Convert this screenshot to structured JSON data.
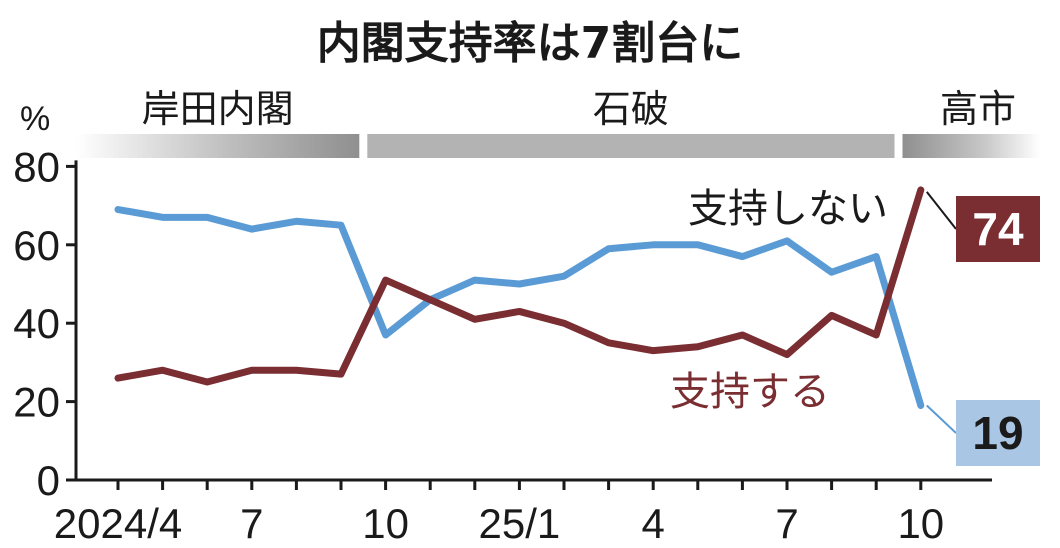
{
  "chart_data": {
    "type": "line",
    "title": "内閣支持率は7割台に",
    "y_unit": "%",
    "ylim": [
      0,
      80
    ],
    "y_ticks": [
      "0",
      "20",
      "40",
      "60",
      "80"
    ],
    "x": [
      "2024-04",
      "2024-05",
      "2024-06",
      "2024-07",
      "2024-08",
      "2024-09",
      "2024-10",
      "2024-11",
      "2024-12",
      "2025-01",
      "2025-02",
      "2025-03",
      "2025-04",
      "2025-05",
      "2025-06",
      "2025-07",
      "2025-08",
      "2025-09",
      "2025-10"
    ],
    "x_tick_labels": [
      {
        "index": 0,
        "label": "2024/4"
      },
      {
        "index": 3,
        "label": "7"
      },
      {
        "index": 6,
        "label": "10"
      },
      {
        "index": 9,
        "label": "25/1"
      },
      {
        "index": 12,
        "label": "4"
      },
      {
        "index": 15,
        "label": "7"
      },
      {
        "index": 18,
        "label": "10"
      }
    ],
    "eras": [
      {
        "name": "岸田内閣",
        "start": 0,
        "end": 5
      },
      {
        "name": "石破",
        "start": 6,
        "end": 17
      },
      {
        "name": "高市",
        "start": 18,
        "end": 18
      }
    ],
    "series": [
      {
        "name": "支持する",
        "color": "#7a2e32",
        "values": [
          26,
          28,
          25,
          28,
          28,
          27,
          51,
          46,
          41,
          43,
          40,
          35,
          33,
          34,
          37,
          32,
          42,
          37,
          74
        ]
      },
      {
        "name": "支持しない",
        "color": "#5b9bd5",
        "values": [
          69,
          67,
          67,
          64,
          66,
          65,
          37,
          46,
          51,
          50,
          52,
          59,
          60,
          60,
          57,
          61,
          53,
          57,
          19
        ]
      }
    ],
    "end_labels": [
      {
        "series": "支持する",
        "value": "74",
        "bg": "#7a2e32",
        "fg": "#ffffff"
      },
      {
        "series": "支持しない",
        "value": "19",
        "bg": "#a9c6e4",
        "fg": "#1a1a1a"
      }
    ],
    "grid": false,
    "legend": "inline-labels"
  }
}
